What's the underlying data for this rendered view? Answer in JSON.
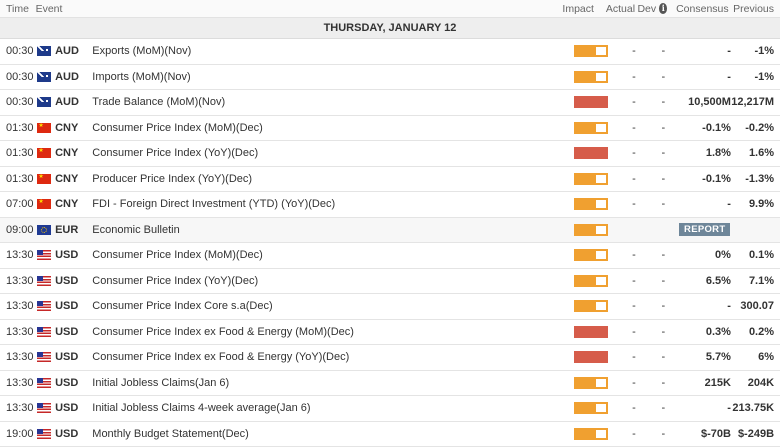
{
  "header": {
    "time": "Time",
    "event": "Event",
    "impact": "Impact",
    "actual": "Actual",
    "dev": "Dev",
    "info_icon": "i",
    "consensus": "Consensus",
    "previous": "Previous"
  },
  "date_label": "THURSDAY, JANUARY 12",
  "colors": {
    "medium": "#f0a030",
    "high": "#d65c4a",
    "report": "#6e8699"
  },
  "rows": [
    {
      "time": "00:30",
      "currency": "AUD",
      "flag": "au-flag-icon",
      "event": "Exports (MoM)(Nov)",
      "impact": "medium",
      "actual": "-",
      "dev": "-",
      "consensus": "-",
      "previous": "-1%"
    },
    {
      "time": "00:30",
      "currency": "AUD",
      "flag": "au-flag-icon",
      "event": "Imports (MoM)(Nov)",
      "impact": "medium",
      "actual": "-",
      "dev": "-",
      "consensus": "-",
      "previous": "-1%"
    },
    {
      "time": "00:30",
      "currency": "AUD",
      "flag": "au-flag-icon",
      "event": "Trade Balance (MoM)(Nov)",
      "impact": "high",
      "actual": "-",
      "dev": "-",
      "consensus": "10,500M",
      "previous": "12,217M"
    },
    {
      "time": "01:30",
      "currency": "CNY",
      "flag": "cn-flag-icon",
      "event": "Consumer Price Index (MoM)(Dec)",
      "impact": "medium",
      "actual": "-",
      "dev": "-",
      "consensus": "-0.1%",
      "previous": "-0.2%"
    },
    {
      "time": "01:30",
      "currency": "CNY",
      "flag": "cn-flag-icon",
      "event": "Consumer Price Index (YoY)(Dec)",
      "impact": "high",
      "actual": "-",
      "dev": "-",
      "consensus": "1.8%",
      "previous": "1.6%"
    },
    {
      "time": "01:30",
      "currency": "CNY",
      "flag": "cn-flag-icon",
      "event": "Producer Price Index (YoY)(Dec)",
      "impact": "medium",
      "actual": "-",
      "dev": "-",
      "consensus": "-0.1%",
      "previous": "-1.3%"
    },
    {
      "time": "07:00",
      "currency": "CNY",
      "flag": "cn-flag-icon",
      "event": "FDI - Foreign Direct Investment (YTD) (YoY)(Dec)",
      "impact": "medium",
      "actual": "-",
      "dev": "-",
      "consensus": "-",
      "previous": "9.9%"
    },
    {
      "time": "09:00",
      "currency": "EUR",
      "flag": "eu-flag-icon",
      "event": "Economic Bulletin",
      "impact": "medium",
      "actual": "",
      "dev": "",
      "consensus": "",
      "previous": "",
      "report": "REPORT"
    },
    {
      "time": "13:30",
      "currency": "USD",
      "flag": "us-flag-icon",
      "event": "Consumer Price Index (MoM)(Dec)",
      "impact": "medium",
      "actual": "-",
      "dev": "-",
      "consensus": "0%",
      "previous": "0.1%"
    },
    {
      "time": "13:30",
      "currency": "USD",
      "flag": "us-flag-icon",
      "event": "Consumer Price Index (YoY)(Dec)",
      "impact": "medium",
      "actual": "-",
      "dev": "-",
      "consensus": "6.5%",
      "previous": "7.1%"
    },
    {
      "time": "13:30",
      "currency": "USD",
      "flag": "us-flag-icon",
      "event": "Consumer Price Index Core s.a(Dec)",
      "impact": "medium",
      "actual": "-",
      "dev": "-",
      "consensus": "-",
      "previous": "300.07"
    },
    {
      "time": "13:30",
      "currency": "USD",
      "flag": "us-flag-icon",
      "event": "Consumer Price Index ex Food & Energy (MoM)(Dec)",
      "impact": "high",
      "actual": "-",
      "dev": "-",
      "consensus": "0.3%",
      "previous": "0.2%"
    },
    {
      "time": "13:30",
      "currency": "USD",
      "flag": "us-flag-icon",
      "event": "Consumer Price Index ex Food & Energy (YoY)(Dec)",
      "impact": "high",
      "actual": "-",
      "dev": "-",
      "consensus": "5.7%",
      "previous": "6%"
    },
    {
      "time": "13:30",
      "currency": "USD",
      "flag": "us-flag-icon",
      "event": "Initial Jobless Claims(Jan 6)",
      "impact": "medium",
      "actual": "-",
      "dev": "-",
      "consensus": "215K",
      "previous": "204K"
    },
    {
      "time": "13:30",
      "currency": "USD",
      "flag": "us-flag-icon",
      "event": "Initial Jobless Claims 4-week average(Jan 6)",
      "impact": "medium",
      "actual": "-",
      "dev": "-",
      "consensus": "-",
      "previous": "213.75K"
    },
    {
      "time": "19:00",
      "currency": "USD",
      "flag": "us-flag-icon",
      "event": "Monthly Budget Statement(Dec)",
      "impact": "medium",
      "actual": "-",
      "dev": "-",
      "consensus": "$-70B",
      "previous": "$-249B"
    }
  ]
}
